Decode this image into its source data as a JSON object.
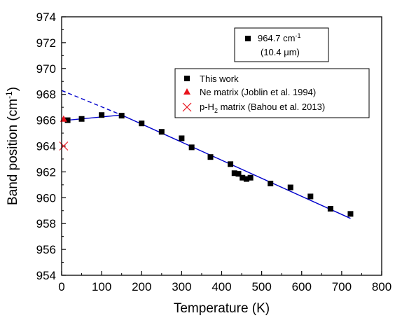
{
  "chart_data": {
    "type": "scatter",
    "xlabel": "Temperature (K)",
    "ylabel_main": "Band position (cm",
    "ylabel_sup": "-1",
    "ylabel_close": ")",
    "xlim": [
      0,
      800
    ],
    "ylim": [
      954,
      974
    ],
    "xticks": [
      0,
      100,
      200,
      300,
      400,
      500,
      600,
      700,
      800
    ],
    "yticks": [
      954,
      956,
      958,
      960,
      962,
      964,
      966,
      968,
      970,
      972,
      974
    ],
    "grid": false,
    "band_legend": {
      "line1_main": "964.7 cm",
      "line1_sup": "-1",
      "line2": "(10.4 μm)",
      "placement": "top-right"
    },
    "series": [
      {
        "name": "This work",
        "marker": "square",
        "color": "#000000",
        "x": [
          15,
          50,
          100,
          150,
          200,
          250,
          300,
          325,
          372,
          422,
          432,
          442,
          452,
          462,
          472,
          522,
          572,
          622,
          672,
          722
        ],
        "y": [
          966.0,
          966.1,
          966.4,
          966.35,
          965.75,
          965.1,
          964.6,
          963.9,
          963.15,
          962.6,
          961.9,
          961.85,
          961.55,
          961.45,
          961.55,
          961.1,
          960.8,
          960.1,
          959.15,
          958.75
        ]
      },
      {
        "name": "Ne matrix (Joblin et al. 1994)",
        "marker": "triangle",
        "color": "#e8131b",
        "x": [
          5
        ],
        "y": [
          966.1
        ]
      },
      {
        "name_main": "p-H",
        "name_sub": "2",
        "name_rest": " matrix (Bahou et al. 2013)",
        "marker": "x",
        "color": "#e8131b",
        "x": [
          5
        ],
        "y": [
          964.0
        ]
      }
    ],
    "fit_lines": [
      {
        "style": "solid",
        "color": "#0000cc",
        "x": [
          15,
          150
        ],
        "y": [
          966.0,
          966.4
        ]
      },
      {
        "style": "solid",
        "color": "#0000cc",
        "x": [
          150,
          722
        ],
        "y": [
          966.4,
          958.4
        ]
      },
      {
        "style": "dashed",
        "color": "#0000cc",
        "x": [
          0,
          150
        ],
        "y": [
          968.3,
          966.4
        ]
      }
    ]
  }
}
